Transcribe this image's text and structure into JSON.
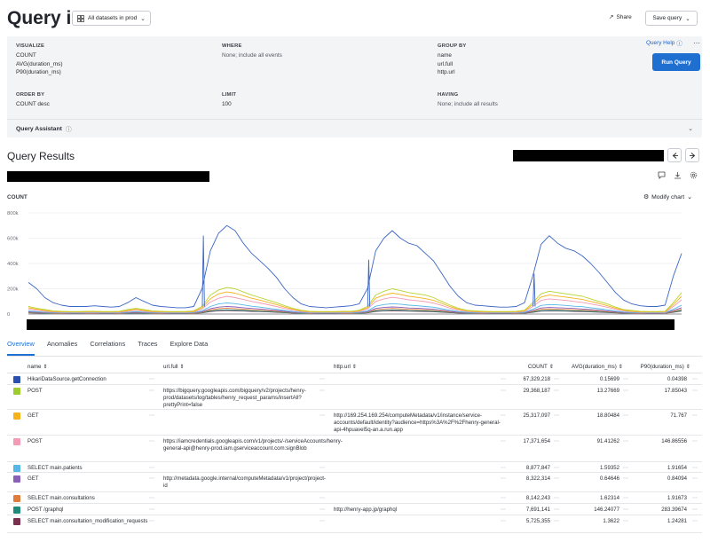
{
  "header": {
    "title": "Query in",
    "dataset_select": "All datasets in prod",
    "share_label": "Share",
    "save_label": "Save query"
  },
  "query": {
    "visualize": {
      "label": "VISUALIZE",
      "items": [
        "COUNT",
        "AVG(duration_ms)",
        "P90(duration_ms)"
      ]
    },
    "where": {
      "label": "WHERE",
      "value": "None; include all events"
    },
    "group_by": {
      "label": "GROUP BY",
      "items": [
        "name",
        "url.full",
        "http.url"
      ]
    },
    "order_by": {
      "label": "ORDER BY",
      "value": "COUNT desc"
    },
    "limit": {
      "label": "LIMIT",
      "value": "100"
    },
    "having": {
      "label": "HAVING",
      "value": "None; include all results"
    },
    "help_label": "Query Help",
    "run_label": "Run Query",
    "assistant_label": "Query Assistant"
  },
  "results": {
    "title": "Query Results",
    "chart_metric": "COUNT",
    "modify_chart_label": "Modify chart"
  },
  "chart_data": {
    "type": "line",
    "title": "",
    "ylabel": "COUNT",
    "y_ticks": [
      "800k",
      "600k",
      "400k",
      "200k",
      "0"
    ],
    "ylim": [
      0,
      800000
    ],
    "grid": true,
    "legend": "none",
    "x_points": 80,
    "series": [
      {
        "color": "#3b66c4",
        "values": [
          250000,
          200000,
          130000,
          90000,
          70000,
          60000,
          60000,
          60000,
          65000,
          60000,
          55000,
          60000,
          90000,
          130000,
          100000,
          70000,
          60000,
          55000,
          50000,
          50000,
          60000,
          200000,
          500000,
          640000,
          700000,
          660000,
          560000,
          480000,
          420000,
          360000,
          290000,
          200000,
          130000,
          80000,
          60000,
          55000,
          50000,
          55000,
          60000,
          65000,
          80000,
          200000,
          500000,
          600000,
          660000,
          600000,
          560000,
          540000,
          480000,
          420000,
          320000,
          220000,
          140000,
          90000,
          70000,
          65000,
          60000,
          55000,
          55000,
          60000,
          90000,
          300000,
          550000,
          620000,
          560000,
          520000,
          500000,
          460000,
          400000,
          330000,
          250000,
          170000,
          110000,
          80000,
          65000,
          60000,
          60000,
          70000,
          300000,
          480000
        ]
      },
      {
        "color": "#b9d32e",
        "values": [
          60000,
          45000,
          35000,
          25000,
          22000,
          20000,
          20000,
          22000,
          22000,
          20000,
          20000,
          22000,
          35000,
          45000,
          35000,
          25000,
          22000,
          20000,
          20000,
          20000,
          25000,
          60000,
          150000,
          190000,
          210000,
          200000,
          175000,
          150000,
          130000,
          110000,
          90000,
          65000,
          45000,
          30000,
          22000,
          20000,
          20000,
          20000,
          22000,
          22000,
          30000,
          60000,
          150000,
          180000,
          200000,
          185000,
          170000,
          160000,
          150000,
          130000,
          100000,
          70000,
          45000,
          30000,
          25000,
          22000,
          20000,
          20000,
          20000,
          22000,
          30000,
          90000,
          160000,
          180000,
          170000,
          160000,
          150000,
          140000,
          120000,
          100000,
          80000,
          55000,
          35000,
          28000,
          22000,
          20000,
          20000,
          22000,
          90000,
          170000
        ]
      },
      {
        "color": "#f5b21a",
        "values": [
          50000,
          38000,
          28000,
          20000,
          18000,
          16000,
          16000,
          18000,
          18000,
          16000,
          16000,
          18000,
          28000,
          38000,
          28000,
          20000,
          18000,
          16000,
          16000,
          16000,
          20000,
          50000,
          120000,
          160000,
          175000,
          165000,
          145000,
          125000,
          110000,
          92000,
          75000,
          55000,
          38000,
          25000,
          18000,
          16000,
          16000,
          16000,
          18000,
          18000,
          25000,
          50000,
          125000,
          150000,
          165000,
          155000,
          140000,
          132000,
          122000,
          108000,
          84000,
          58000,
          38000,
          25000,
          20000,
          18000,
          16000,
          16000,
          16000,
          18000,
          25000,
          75000,
          135000,
          150000,
          142000,
          134000,
          125000,
          115000,
          100000,
          84000,
          66000,
          46000,
          30000,
          22000,
          18000,
          16000,
          16000,
          18000,
          75000,
          140000
        ]
      },
      {
        "color": "#f39ab4",
        "values": [
          40000,
          30000,
          22000,
          16000,
          14000,
          13000,
          13000,
          14000,
          14000,
          13000,
          13000,
          14000,
          22000,
          30000,
          22000,
          16000,
          14000,
          13000,
          13000,
          13000,
          16000,
          40000,
          95000,
          125000,
          140000,
          130000,
          115000,
          100000,
          88000,
          74000,
          60000,
          44000,
          30000,
          20000,
          14000,
          13000,
          13000,
          13000,
          14000,
          14000,
          20000,
          40000,
          100000,
          120000,
          132000,
          124000,
          112000,
          106000,
          98000,
          86000,
          68000,
          46000,
          30000,
          20000,
          16000,
          14000,
          13000,
          13000,
          13000,
          14000,
          20000,
          60000,
          108000,
          120000,
          114000,
          108000,
          100000,
          92000,
          80000,
          68000,
          54000,
          38000,
          24000,
          18000,
          14000,
          13000,
          13000,
          14000,
          60000,
          112000
        ]
      },
      {
        "color": "#56b7e6",
        "values": [
          25000,
          20000,
          15000,
          12000,
          10000,
          9000,
          9000,
          10000,
          10000,
          9000,
          9000,
          10000,
          15000,
          20000,
          15000,
          12000,
          10000,
          9000,
          9000,
          9000,
          12000,
          25000,
          60000,
          80000,
          88000,
          82000,
          72000,
          62000,
          55000,
          46000,
          38000,
          28000,
          20000,
          14000,
          10000,
          9000,
          9000,
          9000,
          10000,
          10000,
          14000,
          25000,
          62000,
          75000,
          82000,
          78000,
          70000,
          66000,
          60000,
          54000,
          42000,
          30000,
          20000,
          14000,
          11000,
          10000,
          9000,
          9000,
          9000,
          10000,
          14000,
          38000,
          68000,
          75000,
          72000,
          68000,
          62000,
          58000,
          50000,
          42000,
          34000,
          24000,
          16000,
          12000,
          10000,
          9000,
          9000,
          10000,
          38000,
          70000
        ]
      },
      {
        "color": "#8a5fb8",
        "values": [
          18000,
          15000,
          12000,
          10000,
          9000,
          8000,
          8000,
          9000,
          9000,
          8000,
          8000,
          9000,
          12000,
          15000,
          12000,
          10000,
          9000,
          8000,
          8000,
          8000,
          10000,
          18000,
          42000,
          55000,
          60000,
          56000,
          50000,
          44000,
          40000,
          34000,
          28000,
          21000,
          15000,
          11000,
          9000,
          8000,
          8000,
          8000,
          9000,
          9000,
          11000,
          18000,
          44000,
          52000,
          56000,
          53000,
          48000,
          46000,
          42000,
          38000,
          30000,
          22000,
          15000,
          11000,
          9000,
          9000,
          8000,
          8000,
          8000,
          9000,
          11000,
          28000,
          48000,
          52000,
          50000,
          47000,
          44000,
          40000,
          36000,
          30000,
          24000,
          18000,
          12000,
          10000,
          9000,
          8000,
          8000,
          9000,
          28000,
          50000
        ]
      },
      {
        "color": "#e07b3c",
        "values": [
          14000,
          12000,
          10000,
          8000,
          7000,
          7000,
          7000,
          7000,
          7000,
          7000,
          7000,
          7000,
          10000,
          12000,
          10000,
          8000,
          7000,
          7000,
          7000,
          7000,
          8000,
          14000,
          32000,
          42000,
          46000,
          43000,
          38000,
          34000,
          30000,
          26000,
          22000,
          16000,
          12000,
          9000,
          7000,
          7000,
          7000,
          7000,
          7000,
          7000,
          9000,
          14000,
          34000,
          40000,
          44000,
          41000,
          37000,
          35000,
          32000,
          29000,
          23000,
          17000,
          12000,
          9000,
          8000,
          7000,
          7000,
          7000,
          7000,
          7000,
          9000,
          22000,
          37000,
          40000,
          38000,
          36000,
          34000,
          31000,
          28000,
          23000,
          19000,
          14000,
          10000,
          8000,
          7000,
          7000,
          7000,
          7000,
          22000,
          38000
        ]
      },
      {
        "color": "#1f8a7a",
        "values": [
          10000,
          9000,
          8000,
          7000,
          6000,
          6000,
          6000,
          6000,
          6000,
          6000,
          6000,
          6000,
          8000,
          9000,
          8000,
          7000,
          6000,
          6000,
          6000,
          6000,
          7000,
          10000,
          24000,
          30000,
          33000,
          31000,
          28000,
          25000,
          22000,
          19000,
          16000,
          12000,
          9000,
          7000,
          6000,
          6000,
          6000,
          6000,
          6000,
          6000,
          7000,
          10000,
          25000,
          29000,
          32000,
          30000,
          27000,
          26000,
          24000,
          21000,
          17000,
          13000,
          9000,
          7000,
          6000,
          6000,
          6000,
          6000,
          6000,
          6000,
          7000,
          16000,
          27000,
          29000,
          28000,
          26000,
          25000,
          23000,
          20000,
          17000,
          14000,
          11000,
          8000,
          7000,
          6000,
          6000,
          6000,
          6000,
          16000,
          28000
        ]
      },
      {
        "color": "#7a2f4e",
        "values": [
          9000,
          8000,
          7000,
          6000,
          6000,
          5000,
          5000,
          6000,
          6000,
          5000,
          5000,
          6000,
          7000,
          8000,
          7000,
          6000,
          6000,
          5000,
          5000,
          5000,
          6000,
          9000,
          20000,
          26000,
          28000,
          26000,
          24000,
          21000,
          19000,
          17000,
          14000,
          11000,
          8000,
          6000,
          6000,
          5000,
          5000,
          5000,
          6000,
          6000,
          6000,
          9000,
          21000,
          25000,
          27000,
          25000,
          23000,
          22000,
          20000,
          18000,
          15000,
          11000,
          8000,
          6000,
          6000,
          6000,
          5000,
          5000,
          5000,
          6000,
          6000,
          14000,
          23000,
          25000,
          24000,
          23000,
          21000,
          19000,
          17000,
          15000,
          12000,
          9000,
          7000,
          6000,
          6000,
          5000,
          5000,
          6000,
          14000,
          24000
        ]
      }
    ],
    "spikes": [
      {
        "index": 21,
        "value": 620000,
        "color": "#3b66c4"
      },
      {
        "index": 41,
        "value": 430000,
        "color": "#3b66c4"
      },
      {
        "index": 61,
        "value": 320000,
        "color": "#3b66c4"
      }
    ]
  },
  "tabs": [
    {
      "label": "Overview",
      "active": true
    },
    {
      "label": "Anomalies",
      "active": false
    },
    {
      "label": "Correlations",
      "active": false
    },
    {
      "label": "Traces",
      "active": false
    },
    {
      "label": "Explore Data",
      "active": false
    }
  ],
  "table": {
    "columns": {
      "name": "name",
      "url_full": "url.full",
      "http_url": "http.url",
      "count": "COUNT",
      "avg": "AVG(duration_ms)",
      "p90": "P90(duration_ms)"
    },
    "rows": [
      {
        "color": "#2b4fb0",
        "name": "HikariDataSource.getConnection",
        "url_full": "",
        "http_url": "",
        "count": "67,329,218",
        "avg": "0.15699",
        "p90": "0.04398"
      },
      {
        "color": "#9ccc2e",
        "name": "POST",
        "url_full": "https://bigquery.googleapis.com/bigquery/v2/projects/henry-prod/datasets/log/tables/henry_request_params/insertAll?prettyPrint=false",
        "http_url": "",
        "count": "29,368,187",
        "avg": "13.27669",
        "p90": "17.85043"
      },
      {
        "color": "#f5b21a",
        "name": "GET",
        "url_full": "",
        "http_url": "http://169.254.169.254/computeMetadata/v1/instance/service-accounts/default/identity?audience=https%3A%2F%2Fhenry-general-api-4hpuavel5q-an.a.run.app",
        "count": "25,317,097",
        "avg": "18.80484",
        "p90": "71.767"
      },
      {
        "color": "#f39ab4",
        "name": "POST",
        "url_full": "https://iamcredentials.googleapis.com/v1/projects/-/serviceAccounts/henry-general-api@henry-prod.iam.gserviceaccount.com:signBlob",
        "http_url": "",
        "count": "17,371,654",
        "avg": "91.41262",
        "p90": "146.86556"
      },
      {
        "color": "#56b7e6",
        "name": "SELECT main.patients",
        "url_full": "",
        "http_url": "",
        "count": "8,877,847",
        "avg": "1.59352",
        "p90": "1.91654"
      },
      {
        "color": "#8a5fb8",
        "name": "GET",
        "url_full": "http://metadata.google.internal/computeMetadata/v1/project/project-id",
        "http_url": "",
        "count": "8,322,314",
        "avg": "0.64646",
        "p90": "0.84094"
      },
      {
        "color": "#e07b3c",
        "name": "SELECT main.consultations",
        "url_full": "",
        "http_url": "",
        "count": "8,142,243",
        "avg": "1.62314",
        "p90": "1.91673"
      },
      {
        "color": "#1f8a7a",
        "name": "POST /graphql",
        "url_full": "",
        "http_url": "http://henry-app.jp/graphql",
        "count": "7,691,141",
        "avg": "146.24077",
        "p90": "283.39674"
      },
      {
        "color": "#7a2f4e",
        "name": "SELECT main.consultation_modification_requests",
        "url_full": "",
        "http_url": "",
        "count": "5,725,355",
        "avg": "1.3622",
        "p90": "1.24281"
      }
    ]
  }
}
